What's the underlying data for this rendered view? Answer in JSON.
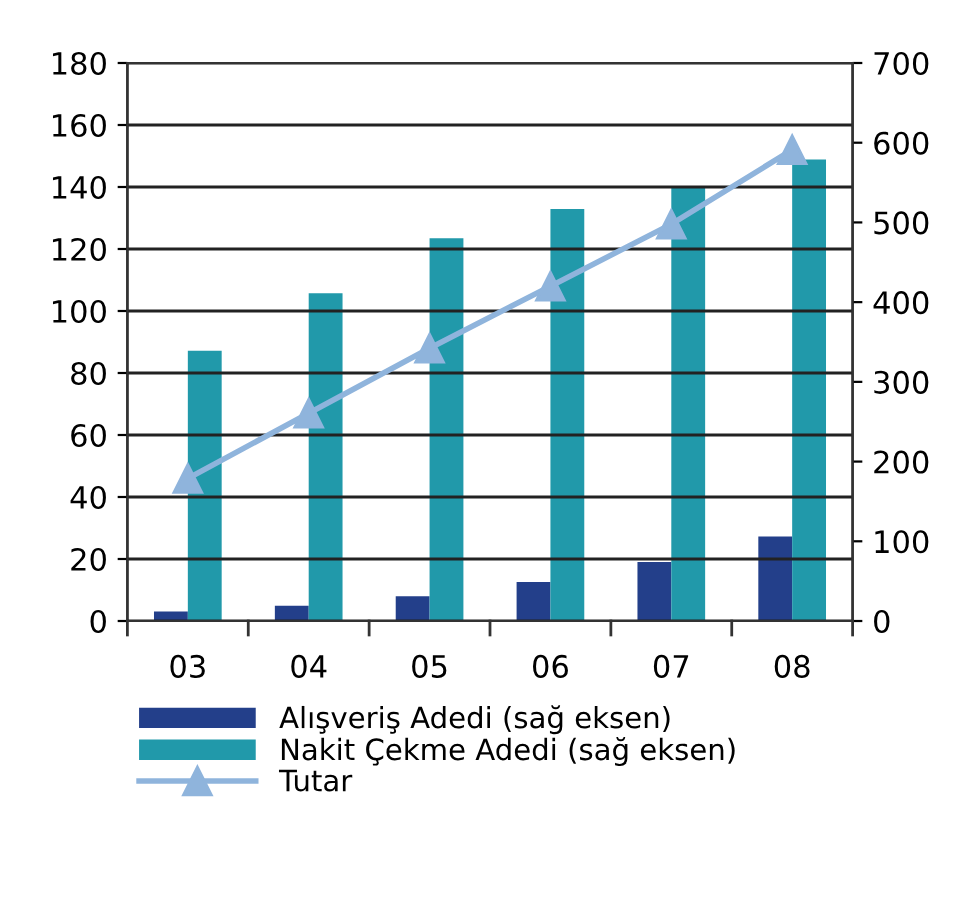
{
  "chart_data": {
    "type": "bar",
    "categories": [
      "03",
      "04",
      "05",
      "06",
      "07",
      "08"
    ],
    "series": [
      {
        "name": "Alışveriş Adedi (sağ eksen)",
        "axis": "y2",
        "color": "#233f8a",
        "values": [
          12,
          19,
          31,
          49,
          74,
          106
        ]
      },
      {
        "name": "Nakit Çekme Adedi (sağ eksen)",
        "axis": "y2",
        "color": "#2199aa",
        "values": [
          339,
          411,
          480,
          517,
          544,
          579
        ]
      },
      {
        "name": "Tutar",
        "type": "line",
        "axis": "y",
        "color": "#8fb4dc",
        "values": [
          46,
          67,
          88,
          108,
          128,
          152
        ],
        "marker": "triangle"
      }
    ],
    "ylim": [
      0,
      180
    ],
    "yticks": [
      0,
      20,
      40,
      60,
      80,
      100,
      120,
      140,
      160,
      180
    ],
    "y2lim": [
      0,
      700
    ],
    "y2ticks": [
      0,
      100,
      200,
      300,
      400,
      500,
      600,
      700
    ],
    "grid": "y",
    "legend": "bottom"
  }
}
